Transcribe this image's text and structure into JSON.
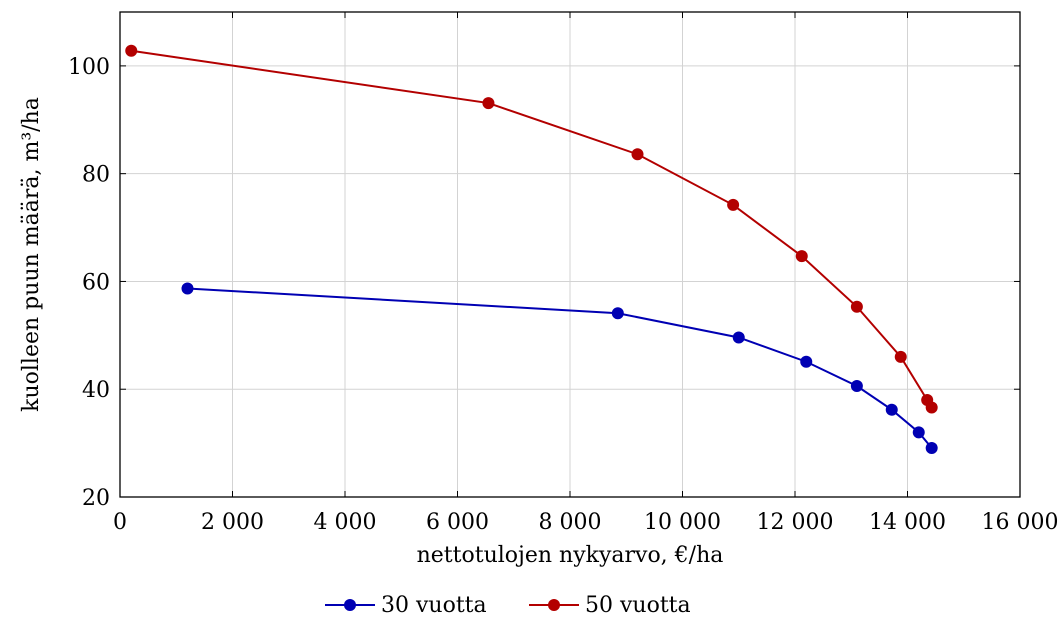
{
  "chart_data": {
    "type": "line",
    "xlabel": "nettotulojen nykyarvo, €/ha",
    "ylabel": "kuolleen puun määrä, m³/ha",
    "xlim": [
      0,
      16000
    ],
    "ylim": [
      20,
      110
    ],
    "grid": true,
    "legend_position": "bottom-center",
    "x_ticks": [
      0,
      2000,
      4000,
      6000,
      8000,
      10000,
      12000,
      14000,
      16000
    ],
    "x_tick_labels": [
      "0",
      "2 000",
      "4 000",
      "6 000",
      "8 000",
      "10 000",
      "12 000",
      "14 000",
      "16 000"
    ],
    "y_ticks": [
      20,
      40,
      60,
      80,
      100
    ],
    "y_tick_labels": [
      "20",
      "40",
      "60",
      "80",
      "100"
    ],
    "series": [
      {
        "name": "30 vuotta",
        "color": "#0000b3",
        "x": [
          1200,
          8850,
          11000,
          12200,
          13100,
          13720,
          14200,
          14430
        ],
        "y": [
          58.7,
          54.1,
          49.6,
          45.1,
          40.6,
          36.2,
          32.0,
          29.1
        ]
      },
      {
        "name": "50 vuotta",
        "color": "#b30000",
        "x": [
          200,
          6550,
          9200,
          10900,
          12120,
          13100,
          13880,
          14350,
          14430
        ],
        "y": [
          102.8,
          93.1,
          83.6,
          74.2,
          64.7,
          55.3,
          46.0,
          38.0,
          36.6
        ]
      }
    ]
  }
}
